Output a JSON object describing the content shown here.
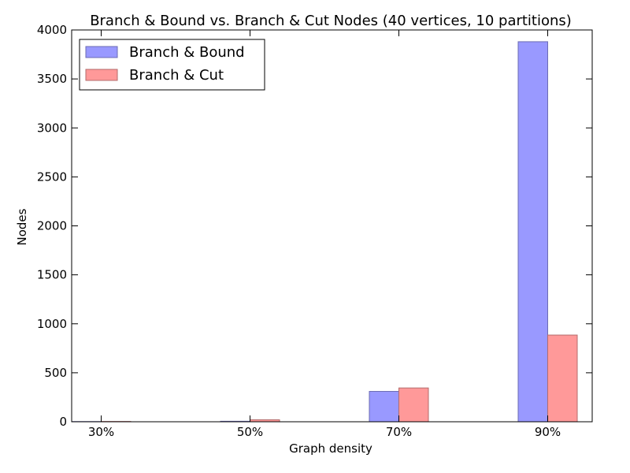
{
  "chart_data": {
    "type": "bar",
    "title": "Branch & Bound vs. Branch & Cut Nodes (40 vertices, 10 partitions)",
    "xlabel": "Graph density",
    "ylabel": "Nodes",
    "categories": [
      "30%",
      "50%",
      "70%",
      "90%"
    ],
    "series": [
      {
        "name": "Branch & Bound",
        "values": [
          2,
          5,
          310,
          3880
        ],
        "color": "#9999ff"
      },
      {
        "name": "Branch & Cut",
        "values": [
          3,
          20,
          345,
          885
        ],
        "color": "#ff9999"
      }
    ],
    "ylim": [
      0,
      4000
    ],
    "yticks": [
      0,
      500,
      1000,
      1500,
      2000,
      2500,
      3000,
      3500,
      4000
    ],
    "grid": false,
    "legend_position": "top-left"
  }
}
